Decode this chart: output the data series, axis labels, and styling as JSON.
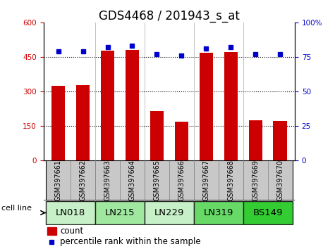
{
  "title": "GDS4468 / 201943_s_at",
  "samples": [
    "GSM397661",
    "GSM397662",
    "GSM397663",
    "GSM397664",
    "GSM397665",
    "GSM397666",
    "GSM397667",
    "GSM397668",
    "GSM397669",
    "GSM397670"
  ],
  "counts": [
    325,
    328,
    478,
    480,
    215,
    168,
    468,
    470,
    175,
    170
  ],
  "percentiles": [
    79,
    79,
    82,
    83,
    77,
    76,
    81,
    82,
    77,
    77
  ],
  "cell_lines": [
    {
      "label": "LN018",
      "start": 0,
      "end": 2,
      "color": "#c8f0c8"
    },
    {
      "label": "LN215",
      "start": 2,
      "end": 4,
      "color": "#a0e8a0"
    },
    {
      "label": "LN229",
      "start": 4,
      "end": 6,
      "color": "#c8f0c8"
    },
    {
      "label": "LN319",
      "start": 6,
      "end": 8,
      "color": "#66d966"
    },
    {
      "label": "BS149",
      "start": 8,
      "end": 10,
      "color": "#33cc33"
    }
  ],
  "bar_color": "#cc0000",
  "dot_color": "#0000cc",
  "left_yticks": [
    0,
    150,
    300,
    450,
    600
  ],
  "right_yticks": [
    0,
    25,
    50,
    75,
    100
  ],
  "ylim_left": [
    0,
    600
  ],
  "ylim_right": [
    0,
    100
  ],
  "grid_lines": [
    150,
    300,
    450
  ],
  "ylabel_left_color": "#cc0000",
  "ylabel_right_color": "#0000cc",
  "title_fontsize": 12,
  "tick_fontsize": 7.5,
  "sample_fontsize": 7.0,
  "legend_fontsize": 8.5,
  "cell_line_fontsize": 9.5,
  "group_dividers": [
    1.5,
    3.5,
    5.5,
    7.5
  ]
}
